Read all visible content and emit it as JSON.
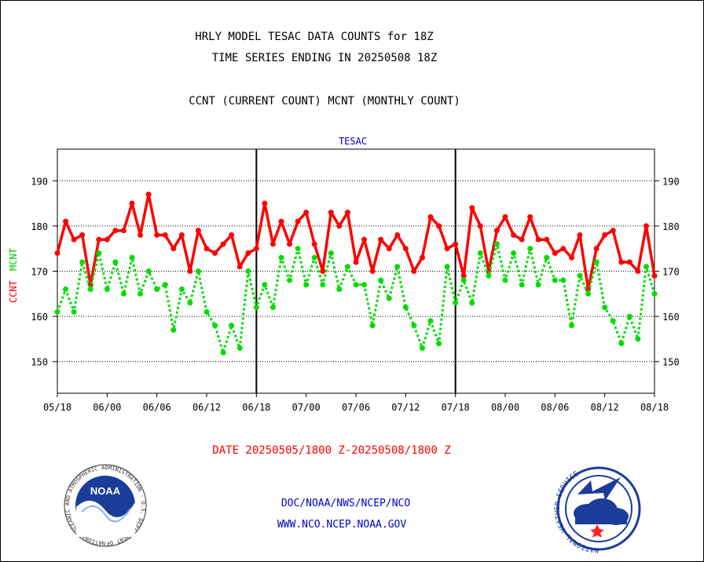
{
  "header": {
    "title_line1": "HRLY MODEL TESAC DATA COUNTS for 18Z",
    "title_line2": "TIME SERIES ENDING IN 20250508 18Z",
    "legend_line": "CCNT (CURRENT COUNT) MCNT (MONTHLY COUNT)"
  },
  "footer": {
    "date_range": "DATE 20250505/1800 Z-20250508/1800 Z",
    "org_line": "DOC/NOAA/NWS/NCEP/NCO",
    "url_line": "WWW.NCO.NCEP.NOAA.GOV",
    "noaa_logo_text": "NOAA",
    "noaa_ring_text": "NATIONAL OCEANIC AND ATMOSPHERIC ADMINISTRATION · U.S. DEPARTMENT OF COMMERCE",
    "nws_ring_text": "NATIONAL WEATHER SERVICE"
  },
  "colors": {
    "ccnt": "#ff0000",
    "mcnt": "#00dd00",
    "title": "#000000",
    "subtitle": "#0000cc",
    "date": "#ff0000"
  },
  "chart_data": {
    "type": "line",
    "title": "TESAC",
    "ylabel_ccnt": "CCNT",
    "ylabel_mcnt": "MCNT",
    "ylim": [
      143,
      197
    ],
    "yticks": [
      150,
      160,
      170,
      180,
      190
    ],
    "grid": true,
    "x_tick_labels": [
      "05/18",
      "06/00",
      "06/06",
      "06/12",
      "06/18",
      "07/00",
      "07/06",
      "07/12",
      "07/18",
      "08/00",
      "08/06",
      "08/12",
      "08/18"
    ],
    "x_range_hours": [
      0,
      72
    ],
    "day_dividers_hours": [
      24,
      48
    ],
    "series": [
      {
        "name": "CCNT",
        "style": "solid",
        "values": [
          174,
          181,
          177,
          178,
          167,
          177,
          177,
          179,
          179,
          185,
          178,
          187,
          178,
          178,
          175,
          178,
          170,
          179,
          175,
          174,
          176,
          178,
          171,
          174,
          175,
          185,
          176,
          181,
          176,
          181,
          183,
          176,
          170,
          183,
          180,
          183,
          172,
          177,
          170,
          177,
          175,
          178,
          175,
          170,
          173,
          182,
          180,
          175,
          176,
          169,
          184,
          180,
          170,
          179,
          182,
          178,
          177,
          182,
          177,
          177,
          174,
          175,
          173,
          178,
          166,
          175,
          178,
          179,
          172,
          172,
          170,
          180,
          169
        ]
      },
      {
        "name": "MCNT",
        "style": "dotted",
        "values": [
          161,
          166,
          161,
          172,
          166,
          174,
          166,
          172,
          165,
          173,
          165,
          170,
          166,
          167,
          157,
          166,
          163,
          170,
          161,
          158,
          152,
          158,
          153,
          170,
          162,
          167,
          162,
          173,
          168,
          175,
          167,
          173,
          167,
          174,
          166,
          171,
          167,
          167,
          158,
          168,
          164,
          171,
          162,
          158,
          153,
          159,
          154,
          171,
          163,
          168,
          163,
          174,
          169,
          176,
          168,
          174,
          167,
          175,
          167,
          173,
          168,
          168,
          158,
          169,
          165,
          172,
          162,
          159,
          154,
          160,
          155,
          171,
          165
        ]
      }
    ]
  }
}
